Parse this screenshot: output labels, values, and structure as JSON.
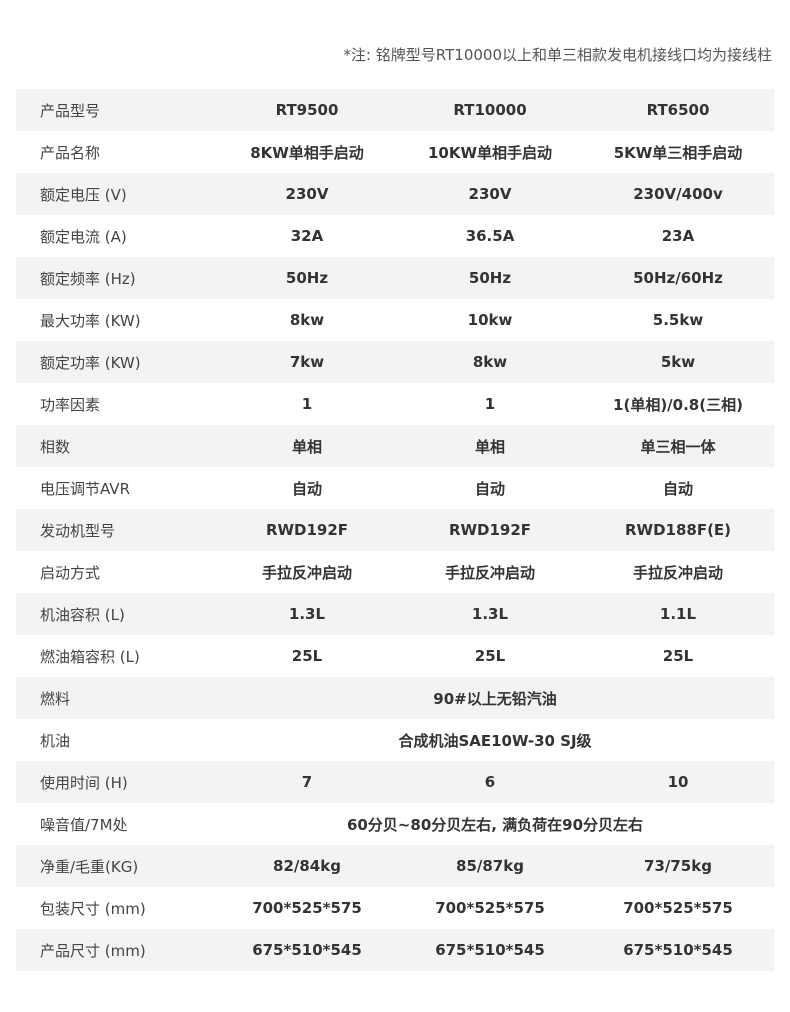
{
  "note": "*注: 铭牌型号RT10000以上和单三相款发电机接线口均为接线柱",
  "rows": [
    {
      "label": "产品型号",
      "values": [
        "RT9500",
        "RT10000",
        "RT6500"
      ]
    },
    {
      "label": "产品名称",
      "values": [
        "8KW单相手启动",
        "10KW单相手启动",
        "5KW单三相手启动"
      ]
    },
    {
      "label": "额定电压 (V)",
      "values": [
        "230V",
        "230V",
        "230V/400v"
      ]
    },
    {
      "label": "额定电流 (A)",
      "values": [
        "32A",
        "36.5A",
        "23A"
      ]
    },
    {
      "label": "额定频率 (Hz)",
      "values": [
        "50Hz",
        "50Hz",
        "50Hz/60Hz"
      ]
    },
    {
      "label": "最大功率 (KW)",
      "values": [
        "8kw",
        "10kw",
        "5.5kw"
      ]
    },
    {
      "label": "额定功率 (KW)",
      "values": [
        "7kw",
        "8kw",
        "5kw"
      ]
    },
    {
      "label": "功率因素",
      "values": [
        "1",
        "1",
        "1(单相)/0.8(三相)"
      ]
    },
    {
      "label": "相数",
      "values": [
        "单相",
        "单相",
        "单三相一体"
      ]
    },
    {
      "label": "电压调节AVR",
      "values": [
        "自动",
        "自动",
        "自动"
      ]
    },
    {
      "label": "发动机型号",
      "values": [
        "RWD192F",
        "RWD192F",
        "RWD188F(E)"
      ]
    },
    {
      "label": "启动方式",
      "values": [
        "手拉反冲启动",
        "手拉反冲启动",
        "手拉反冲启动"
      ]
    },
    {
      "label": "机油容积 (L)",
      "values": [
        "1.3L",
        "1.3L",
        "1.1L"
      ]
    },
    {
      "label": "燃油箱容积 (L)",
      "values": [
        "25L",
        "25L",
        "25L"
      ]
    },
    {
      "label": "燃料",
      "merged": "90#以上无铅汽油"
    },
    {
      "label": "机油",
      "merged": "合成机油SAE10W-30 SJ级"
    },
    {
      "label": "使用时间 (H)",
      "values": [
        "7",
        "6",
        "10"
      ]
    },
    {
      "label": "噪音值/7M处",
      "merged": "60分贝~80分贝左右, 满负荷在90分贝左右"
    },
    {
      "label": "净重/毛重(KG)",
      "values": [
        "82/84kg",
        "85/87kg",
        "73/75kg"
      ]
    },
    {
      "label": "包装尺寸 (mm)",
      "values": [
        "700*525*575",
        "700*525*575",
        "700*525*575"
      ]
    },
    {
      "label": "产品尺寸 (mm)",
      "values": [
        "675*510*545",
        "675*510*545",
        "675*510*545"
      ]
    }
  ]
}
